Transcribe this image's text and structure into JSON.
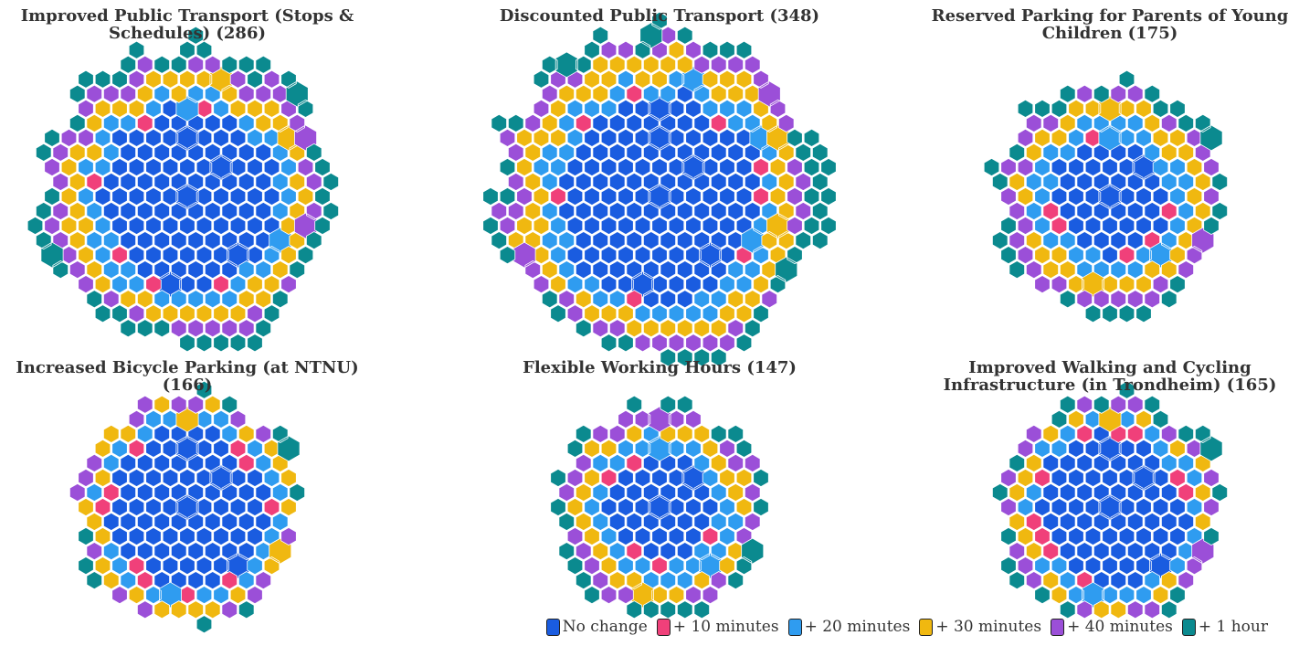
{
  "chart_data": [
    {
      "type": "hexcluster",
      "title": "Improved Public Transport (Stops & Schedules) (286)",
      "values": [
        100,
        6,
        40,
        50,
        40,
        50
      ]
    },
    {
      "type": "hexcluster",
      "title": "Discounted Public Transport (348)",
      "values": [
        130,
        8,
        50,
        65,
        45,
        50
      ]
    },
    {
      "type": "hexcluster",
      "title": "Reserved Parking for Parents of Young Children (175)",
      "values": [
        40,
        6,
        35,
        35,
        30,
        29
      ]
    },
    {
      "type": "hexcluster",
      "title": "Increased Bicycle Parking (at NTNU) (166)",
      "values": [
        80,
        10,
        25,
        25,
        16,
        10
      ]
    },
    {
      "type": "hexcluster",
      "title": "Flexible Working Hours (147)",
      "values": [
        35,
        5,
        30,
        27,
        25,
        25
      ]
    },
    {
      "type": "hexcluster",
      "title": "Improved Walking and Cycling Infrastructure (in Trondheim) (165)",
      "values": [
        70,
        10,
        25,
        20,
        20,
        20
      ]
    }
  ],
  "legend": [
    {
      "name": "No change",
      "color": "#1a5ce0"
    },
    {
      "name": "+ 10 minutes",
      "color": "#f0407a"
    },
    {
      "name": "+ 20 minutes",
      "color": "#2f9cf0"
    },
    {
      "name": "+ 30 minutes",
      "color": "#f0b810"
    },
    {
      "name": "+ 40 minutes",
      "color": "#9b4fd8"
    },
    {
      "name": "+ 1 hour",
      "color": "#0b8a8f"
    }
  ]
}
